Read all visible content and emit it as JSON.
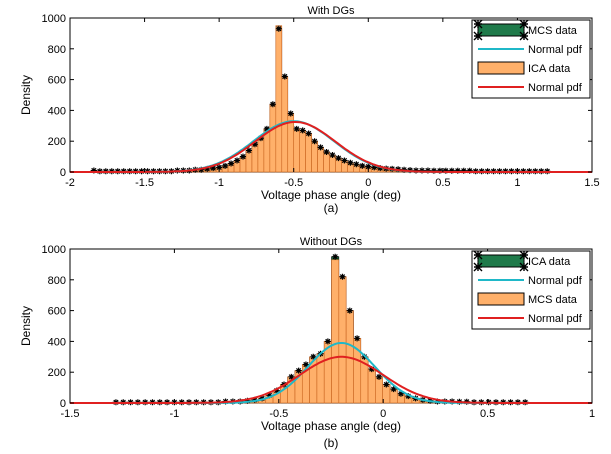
{
  "figure": {
    "panel_labels": [
      "(a)",
      "(b)"
    ]
  },
  "chart_data": [
    {
      "type": "bar",
      "title": "With DGs",
      "xlabel": "Voltage phase angle (deg)",
      "ylabel": "Density",
      "xlim": [
        -2,
        1.5
      ],
      "ylim": [
        0,
        1000
      ],
      "xticks": [
        -2,
        -1.5,
        -1,
        -0.5,
        0,
        0.5,
        1,
        1.5
      ],
      "yticks": [
        0,
        200,
        400,
        600,
        800,
        1000
      ],
      "grid": false,
      "legend_position": "top-right",
      "legend": [
        {
          "label": "MCS data",
          "kind": "patch",
          "color": "#1f7a4a"
        },
        {
          "label": "Normal pdf",
          "kind": "line",
          "color": "#1fb8c8"
        },
        {
          "label": "ICA data",
          "kind": "patch",
          "color": "#ffb06a"
        },
        {
          "label": "Normal pdf",
          "kind": "line",
          "color": "#e02020"
        }
      ],
      "bin_width": 0.04,
      "bins": {
        "x": [
          -1.84,
          -1.8,
          -1.76,
          -1.72,
          -1.68,
          -1.64,
          -1.6,
          -1.56,
          -1.52,
          -1.48,
          -1.44,
          -1.4,
          -1.36,
          -1.32,
          -1.28,
          -1.24,
          -1.2,
          -1.16,
          -1.12,
          -1.08,
          -1.04,
          -1.0,
          -0.96,
          -0.92,
          -0.88,
          -0.84,
          -0.8,
          -0.76,
          -0.72,
          -0.68,
          -0.64,
          -0.6,
          -0.56,
          -0.52,
          -0.48,
          -0.44,
          -0.4,
          -0.36,
          -0.32,
          -0.28,
          -0.24,
          -0.2,
          -0.16,
          -0.12,
          -0.08,
          -0.04,
          0.0,
          0.04,
          0.08,
          0.12,
          0.16,
          0.2,
          0.24,
          0.28,
          0.32,
          0.36,
          0.4,
          0.44,
          0.48,
          0.52,
          0.56,
          0.6,
          0.64,
          0.68,
          0.72,
          0.76,
          0.8,
          0.84,
          0.88,
          0.92,
          0.96,
          1.0,
          1.04,
          1.08,
          1.12,
          1.16,
          1.2
        ],
        "ica": [
          10,
          5,
          5,
          5,
          5,
          5,
          5,
          5,
          5,
          5,
          5,
          5,
          5,
          5,
          10,
          10,
          10,
          15,
          15,
          20,
          25,
          30,
          40,
          55,
          75,
          100,
          140,
          180,
          220,
          280,
          440,
          950,
          620,
          380,
          280,
          270,
          250,
          200,
          160,
          130,
          110,
          90,
          75,
          60,
          50,
          40,
          35,
          30,
          25,
          22,
          20,
          18,
          15,
          12,
          10,
          10,
          10,
          8,
          8,
          8,
          8,
          8,
          8,
          8,
          5,
          5,
          5,
          5,
          5,
          5,
          5,
          5,
          5,
          5,
          5,
          5,
          5
        ],
        "mcs": [
          10,
          5,
          5,
          5,
          5,
          5,
          5,
          5,
          5,
          5,
          5,
          5,
          5,
          5,
          10,
          10,
          10,
          15,
          15,
          20,
          25,
          30,
          40,
          55,
          75,
          100,
          140,
          180,
          220,
          280,
          440,
          930,
          620,
          380,
          280,
          270,
          250,
          200,
          160,
          130,
          110,
          90,
          75,
          60,
          50,
          40,
          35,
          30,
          25,
          22,
          20,
          18,
          15,
          12,
          10,
          10,
          10,
          8,
          8,
          8,
          8,
          8,
          8,
          8,
          5,
          5,
          5,
          5,
          5,
          5,
          5,
          5,
          5,
          5,
          5,
          5,
          5
        ]
      },
      "normal_pdfs": [
        {
          "legend_label": "Normal pdf",
          "color": "#1fb8c8",
          "mean": -0.5,
          "peak": 330,
          "sigma": 0.27
        },
        {
          "legend_label": "Normal pdf",
          "color": "#e02020",
          "mean": -0.49,
          "peak": 325,
          "sigma": 0.27
        }
      ]
    },
    {
      "type": "bar",
      "title": "Without DGs",
      "xlabel": "Voltage phase angle (deg)",
      "ylabel": "Density",
      "xlim": [
        -1.5,
        1
      ],
      "ylim": [
        0,
        1000
      ],
      "xticks": [
        -1.5,
        -1,
        -0.5,
        0,
        0.5,
        1
      ],
      "yticks": [
        0,
        200,
        400,
        600,
        800,
        1000
      ],
      "grid": false,
      "legend_position": "top-right",
      "legend": [
        {
          "label": "ICA data",
          "kind": "patch",
          "color": "#1f7a4a"
        },
        {
          "label": "Normal pdf",
          "kind": "line",
          "color": "#1fb8c8"
        },
        {
          "label": "MCS data",
          "kind": "patch",
          "color": "#ffb06a"
        },
        {
          "label": "Normal pdf",
          "kind": "line",
          "color": "#e02020"
        }
      ],
      "bin_width": 0.035,
      "bins": {
        "x": [
          -1.28,
          -1.245,
          -1.21,
          -1.175,
          -1.14,
          -1.105,
          -1.07,
          -1.035,
          -1.0,
          -0.965,
          -0.93,
          -0.895,
          -0.86,
          -0.825,
          -0.79,
          -0.755,
          -0.72,
          -0.685,
          -0.65,
          -0.615,
          -0.58,
          -0.545,
          -0.51,
          -0.475,
          -0.44,
          -0.405,
          -0.37,
          -0.335,
          -0.3,
          -0.265,
          -0.23,
          -0.195,
          -0.16,
          -0.125,
          -0.09,
          -0.055,
          -0.02,
          0.015,
          0.05,
          0.085,
          0.12,
          0.155,
          0.19,
          0.225,
          0.26,
          0.295,
          0.33,
          0.365,
          0.4,
          0.435,
          0.47,
          0.505,
          0.54,
          0.575,
          0.61,
          0.645,
          0.68
        ],
        "mcs": [
          5,
          5,
          5,
          5,
          5,
          5,
          5,
          5,
          5,
          5,
          5,
          5,
          5,
          5,
          5,
          10,
          10,
          10,
          15,
          20,
          30,
          50,
          80,
          120,
          170,
          210,
          250,
          300,
          320,
          400,
          930,
          820,
          600,
          420,
          300,
          220,
          170,
          120,
          90,
          60,
          45,
          30,
          20,
          15,
          10,
          10,
          10,
          8,
          8,
          5,
          5,
          5,
          5,
          5,
          5,
          5,
          5
        ],
        "ica": [
          5,
          5,
          5,
          5,
          5,
          5,
          5,
          5,
          5,
          5,
          5,
          5,
          5,
          5,
          5,
          10,
          10,
          10,
          15,
          20,
          30,
          50,
          80,
          120,
          170,
          210,
          250,
          300,
          320,
          400,
          950,
          820,
          600,
          420,
          300,
          220,
          170,
          120,
          90,
          60,
          45,
          30,
          20,
          15,
          10,
          10,
          10,
          8,
          8,
          5,
          5,
          5,
          5,
          5,
          5,
          5,
          5
        ]
      },
      "normal_pdfs": [
        {
          "legend_label": "Normal pdf",
          "color": "#1fb8c8",
          "mean": -0.2,
          "peak": 390,
          "sigma": 0.16
        },
        {
          "legend_label": "Normal pdf",
          "color": "#e02020",
          "mean": -0.2,
          "peak": 300,
          "sigma": 0.2
        }
      ]
    }
  ]
}
